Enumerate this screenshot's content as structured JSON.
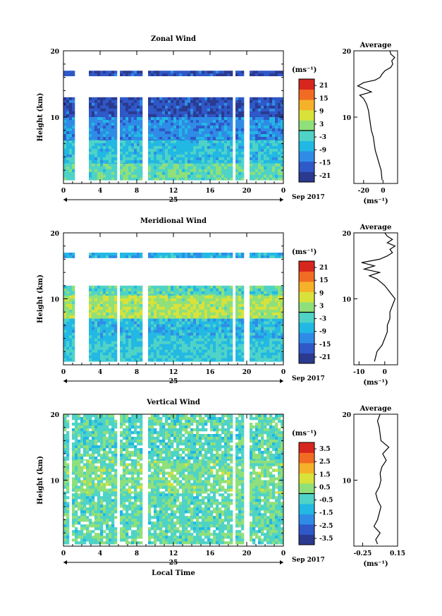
{
  "chart_data": [
    {
      "type": "heatmap",
      "title": "Zonal Wind",
      "ylabel": "Height (km)",
      "ylim": [
        0,
        20
      ],
      "xlim": [
        0,
        24
      ],
      "xticks": [
        "0",
        "4",
        "8",
        "12",
        "16",
        "20",
        "0"
      ],
      "date_label": "25",
      "date_suffix": "Sep 2017",
      "colorbar": {
        "unit": "(ms⁻¹)",
        "ticks": [
          "21",
          "15",
          "9",
          "3",
          "-3",
          "-9",
          "-15",
          "-21"
        ],
        "range": [
          -24,
          24
        ]
      },
      "bands": [
        {
          "h0": 17.0,
          "h1": 16.2,
          "value": -18
        },
        {
          "h0": 13.0,
          "h1": 10.0,
          "value": -18
        },
        {
          "h0": 10.0,
          "h1": 6.5,
          "value": -12
        },
        {
          "h0": 6.5,
          "h1": 3.0,
          "value": -6
        },
        {
          "h0": 3.0,
          "h1": 0.5,
          "value": -1
        }
      ],
      "gaps": [
        [
          1.2,
          2.5
        ],
        [
          5.6,
          6.1
        ],
        [
          8.5,
          9.0
        ],
        [
          18.3,
          18.7
        ],
        [
          19.5,
          20.0
        ],
        [
          21.0,
          21.2
        ]
      ],
      "average": {
        "title": "Average",
        "xlabel": "(ms⁻¹)",
        "xlim": [
          -30,
          15
        ],
        "xticks": [
          "-20",
          "0"
        ],
        "yticks": [
          "10",
          "20"
        ],
        "heights": [
          0.5,
          2,
          3,
          4,
          5,
          6,
          7,
          8,
          9,
          10,
          11,
          12,
          12.8,
          13.3,
          13.8,
          14.2,
          14.7,
          15.2,
          15.6,
          16,
          16.5,
          17,
          17.5,
          18,
          18.5,
          19,
          19.5,
          20
        ],
        "values": [
          -1,
          -2,
          -4,
          -6,
          -8,
          -9,
          -10,
          -12,
          -13,
          -14,
          -15,
          -17,
          -20,
          -24,
          -12,
          -18,
          -26,
          -20,
          -8,
          -3,
          -1,
          2,
          8,
          10,
          9,
          12,
          8,
          7
        ]
      }
    },
    {
      "type": "heatmap",
      "title": "Meridional Wind",
      "ylabel": "Height (km)",
      "ylim": [
        0,
        20
      ],
      "xlim": [
        0,
        24
      ],
      "xticks": [
        "0",
        "4",
        "8",
        "12",
        "16",
        "20",
        "0"
      ],
      "date_label": "25",
      "date_suffix": "Sep 2017",
      "colorbar": {
        "unit": "(ms⁻¹)",
        "ticks": [
          "21",
          "15",
          "9",
          "3",
          "-3",
          "-9",
          "-15",
          "-21"
        ],
        "range": [
          -24,
          24
        ]
      },
      "bands": [
        {
          "h0": 17.0,
          "h1": 16.2,
          "value": -8
        },
        {
          "h0": 12.0,
          "h1": 10.5,
          "value": -2
        },
        {
          "h0": 10.5,
          "h1": 7.0,
          "value": 4
        },
        {
          "h0": 7.0,
          "h1": 4.0,
          "value": -7
        },
        {
          "h0": 4.0,
          "h1": 0.5,
          "value": -5
        }
      ],
      "gaps": [
        [
          1.2,
          2.5
        ],
        [
          5.6,
          6.1
        ],
        [
          8.5,
          9.0
        ],
        [
          18.3,
          18.7
        ],
        [
          19.5,
          20.0
        ],
        [
          21.0,
          21.2
        ]
      ],
      "average": {
        "title": "Average",
        "xlabel": "(ms⁻¹)",
        "xlim": [
          -12,
          5
        ],
        "xticks": [
          "-10",
          "0"
        ],
        "yticks": [
          "10",
          "20"
        ],
        "heights": [
          0.5,
          2,
          3,
          4,
          5,
          6,
          7,
          8,
          9,
          10,
          11,
          12,
          13,
          13.5,
          14,
          14.5,
          15,
          15.5,
          16,
          16.5,
          17,
          17.5,
          18,
          18.5,
          19,
          19.5,
          20
        ],
        "values": [
          -4,
          -3,
          -1,
          0,
          1,
          1,
          2,
          2,
          3,
          4,
          2,
          0,
          -3,
          -6,
          -2,
          -8,
          -4,
          -9,
          -2,
          1,
          3,
          2,
          4,
          1,
          3,
          1,
          0
        ]
      }
    },
    {
      "type": "heatmap",
      "title": "Vertical Wind",
      "ylabel": "Height (km)",
      "xlabel": "Local Time",
      "ylim": [
        0,
        20
      ],
      "xlim": [
        0,
        24
      ],
      "xticks": [
        "0",
        "4",
        "8",
        "12",
        "16",
        "20",
        "0"
      ],
      "date_label": "25",
      "date_suffix": "Sep 2017",
      "colorbar": {
        "unit": "(ms⁻¹)",
        "ticks": [
          "3.5",
          "2.5",
          "1.5",
          "0.5",
          "-0.5",
          "-1.5",
          "-2.5",
          "-3.5"
        ],
        "range": [
          -4,
          4
        ]
      },
      "bands": [
        {
          "h0": 20.0,
          "h1": 13.0,
          "value": -0.3
        },
        {
          "h0": 13.0,
          "h1": 8.0,
          "value": 0.2
        },
        {
          "h0": 8.0,
          "h1": 0.3,
          "value": -0.2
        }
      ],
      "gaps": [
        [
          0.6,
          0.9
        ],
        [
          2.5,
          2.7
        ],
        [
          5.6,
          6.1
        ],
        [
          8.5,
          9.0
        ],
        [
          17.6,
          17.8
        ],
        [
          18.3,
          18.7
        ],
        [
          19.5,
          20.0
        ],
        [
          21.0,
          21.2
        ]
      ],
      "average": {
        "title": "Average",
        "xlabel": "(ms⁻¹)",
        "xlim": [
          -0.35,
          0.15
        ],
        "xticks": [
          "-0.25",
          "0.15"
        ],
        "yticks": [
          "10",
          "20"
        ],
        "heights": [
          0.3,
          1,
          2,
          3,
          4,
          5,
          6,
          7,
          8,
          9,
          10,
          11,
          12,
          13,
          14,
          15,
          16,
          17,
          18,
          19,
          20
        ],
        "values": [
          -0.08,
          -0.1,
          -0.05,
          -0.12,
          -0.08,
          -0.06,
          -0.04,
          -0.08,
          -0.1,
          -0.06,
          -0.04,
          -0.05,
          -0.03,
          0.02,
          -0.02,
          0.05,
          -0.04,
          -0.05,
          -0.06,
          -0.08,
          -0.05
        ]
      }
    }
  ]
}
